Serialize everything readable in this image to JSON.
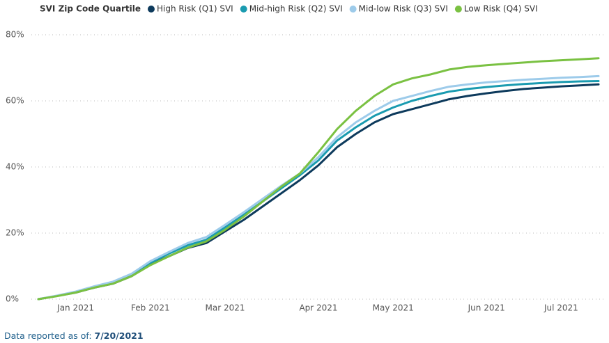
{
  "chart_data": {
    "type": "line",
    "legend_title": "SVI Zip Code Quartile",
    "categories": [
      null,
      null,
      "Jan 2021",
      null,
      null,
      null,
      "Feb 2021",
      null,
      null,
      null,
      "Mar 2021",
      null,
      null,
      null,
      null,
      "Apr 2021",
      null,
      null,
      null,
      "May 2021",
      null,
      null,
      null,
      null,
      "Jun 2021",
      null,
      null,
      null,
      "Jul 2021",
      null,
      null
    ],
    "series": [
      {
        "name": "High Risk (Q1) SVI",
        "color": "#0d3a5c",
        "values": [
          0,
          1,
          2,
          3.5,
          4.7,
          7,
          10.5,
          13,
          15.5,
          17,
          20.5,
          24,
          28,
          32,
          36,
          40.5,
          46,
          50,
          53.5,
          56,
          57.5,
          59,
          60.5,
          61.5,
          62.3,
          63,
          63.6,
          64,
          64.4,
          64.7,
          65
        ]
      },
      {
        "name": "Mid-high Risk (Q2) SVI",
        "color": "#1a9bb0",
        "values": [
          0,
          1,
          2.1,
          3.7,
          5,
          7.3,
          11,
          13.8,
          16.3,
          18,
          21.7,
          25.5,
          29.5,
          33.5,
          37.5,
          42,
          48,
          52,
          55.5,
          58,
          60,
          61.5,
          62.8,
          63.6,
          64.2,
          64.7,
          65.1,
          65.4,
          65.7,
          65.9,
          66
        ]
      },
      {
        "name": "Mid-low Risk (Q3) SVI",
        "color": "#9dcbea",
        "values": [
          0,
          1.1,
          2.3,
          3.9,
          5.3,
          7.7,
          11.5,
          14.3,
          17,
          18.8,
          22.5,
          26.3,
          30.3,
          34.3,
          38,
          43,
          49,
          53.5,
          57,
          60,
          61.5,
          63,
          64.3,
          65,
          65.6,
          66,
          66.4,
          66.7,
          67,
          67.2,
          67.5
        ]
      },
      {
        "name": "Low Risk (Q4) SVI",
        "color": "#7ac142",
        "values": [
          0,
          0.9,
          2,
          3.5,
          4.7,
          7,
          10.3,
          13,
          15.6,
          17.5,
          21,
          25,
          29.5,
          34,
          38,
          44.5,
          51.5,
          57,
          61.5,
          65,
          66.8,
          68,
          69.5,
          70.3,
          70.8,
          71.2,
          71.6,
          72,
          72.3,
          72.6,
          72.9
        ]
      }
    ],
    "ylim": [
      0,
      80
    ],
    "yticks": [
      {
        "value": 0,
        "label": "0%"
      },
      {
        "value": 20,
        "label": "20%"
      },
      {
        "value": 40,
        "label": "40%"
      },
      {
        "value": 60,
        "label": "60%"
      },
      {
        "value": 80,
        "label": "80%"
      }
    ],
    "grid": true
  },
  "footer": {
    "text": "Data reported as of:",
    "date": "7/20/2021"
  }
}
